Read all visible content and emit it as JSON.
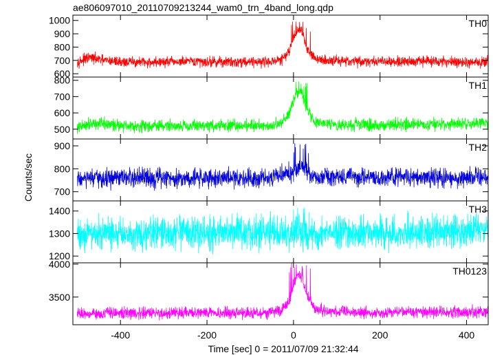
{
  "chart_data": {
    "type": "line",
    "title": "ae806097010_20110709213244_wam0_trn_4band_long.qdp",
    "xlabel": "Time [sec] 0 = 2011/07/09 21:32:44",
    "ylabel": "Counts/sec",
    "xlim": [
      -510,
      450
    ],
    "x_ticks": [
      -400,
      -200,
      0,
      200,
      400
    ],
    "grid": false,
    "panels": [
      {
        "name": "TH0",
        "color": "#ff0000",
        "ylim": [
          575,
          1040
        ],
        "y_ticks": [
          600,
          700,
          800,
          900,
          1000
        ],
        "x": [
          -500,
          -470,
          -440,
          -400,
          -350,
          -300,
          -250,
          -200,
          -150,
          -100,
          -60,
          -30,
          -10,
          0,
          10,
          20,
          30,
          50,
          80,
          120,
          200,
          300,
          400,
          440
        ],
        "values": [
          690,
          720,
          700,
          690,
          685,
          688,
          690,
          690,
          688,
          692,
          690,
          700,
          760,
          880,
          930,
          920,
          800,
          710,
          700,
          695,
          690,
          695,
          685,
          690
        ],
        "noise": 30,
        "peak": 1020
      },
      {
        "name": "TH1",
        "color": "#00ff00",
        "ylim": [
          440,
          820
        ],
        "y_ticks": [
          500,
          600,
          700,
          800
        ],
        "x": [
          -500,
          -470,
          -440,
          -400,
          -350,
          -300,
          -250,
          -200,
          -150,
          -100,
          -60,
          -30,
          -10,
          0,
          10,
          20,
          30,
          50,
          80,
          120,
          200,
          300,
          400,
          440
        ],
        "values": [
          505,
          540,
          530,
          525,
          520,
          520,
          522,
          522,
          520,
          525,
          522,
          530,
          600,
          680,
          730,
          720,
          620,
          540,
          530,
          528,
          525,
          530,
          535,
          540
        ],
        "noise": 28,
        "peak": 800
      },
      {
        "name": "TH2",
        "color": "#0000dd",
        "ylim": [
          660,
          930
        ],
        "y_ticks": [
          700,
          800,
          900
        ],
        "x": [
          -500,
          -400,
          -300,
          -200,
          -100,
          -50,
          0,
          10,
          20,
          30,
          40,
          60,
          100,
          200,
          300,
          400,
          440
        ],
        "values": [
          755,
          758,
          760,
          760,
          762,
          765,
          785,
          800,
          810,
          790,
          770,
          765,
          762,
          765,
          762,
          760,
          765
        ],
        "noise": 32,
        "peak": 920
      },
      {
        "name": "TH3",
        "color": "#00ffff",
        "ylim": [
          1170,
          1445
        ],
        "y_ticks": [
          1200,
          1300,
          1400
        ],
        "x": [
          -500,
          -400,
          -300,
          -200,
          -100,
          0,
          100,
          200,
          300,
          400,
          440
        ],
        "values": [
          1300,
          1300,
          1300,
          1300,
          1305,
          1305,
          1300,
          1305,
          1305,
          1310,
          1315
        ],
        "noise": 55,
        "peak": 1440
      },
      {
        "name": "TH0123",
        "color": "#ff00ff",
        "ylim": [
          3080,
          4020
        ],
        "y_ticks": [
          3500,
          4000
        ],
        "x": [
          -500,
          -400,
          -300,
          -200,
          -100,
          -60,
          -30,
          -10,
          0,
          10,
          20,
          30,
          50,
          80,
          120,
          200,
          300,
          400,
          440
        ],
        "values": [
          3250,
          3255,
          3255,
          3260,
          3260,
          3260,
          3290,
          3440,
          3700,
          3820,
          3800,
          3550,
          3320,
          3280,
          3270,
          3265,
          3270,
          3275,
          3280
        ],
        "noise": 65,
        "peak": 4040
      }
    ]
  }
}
